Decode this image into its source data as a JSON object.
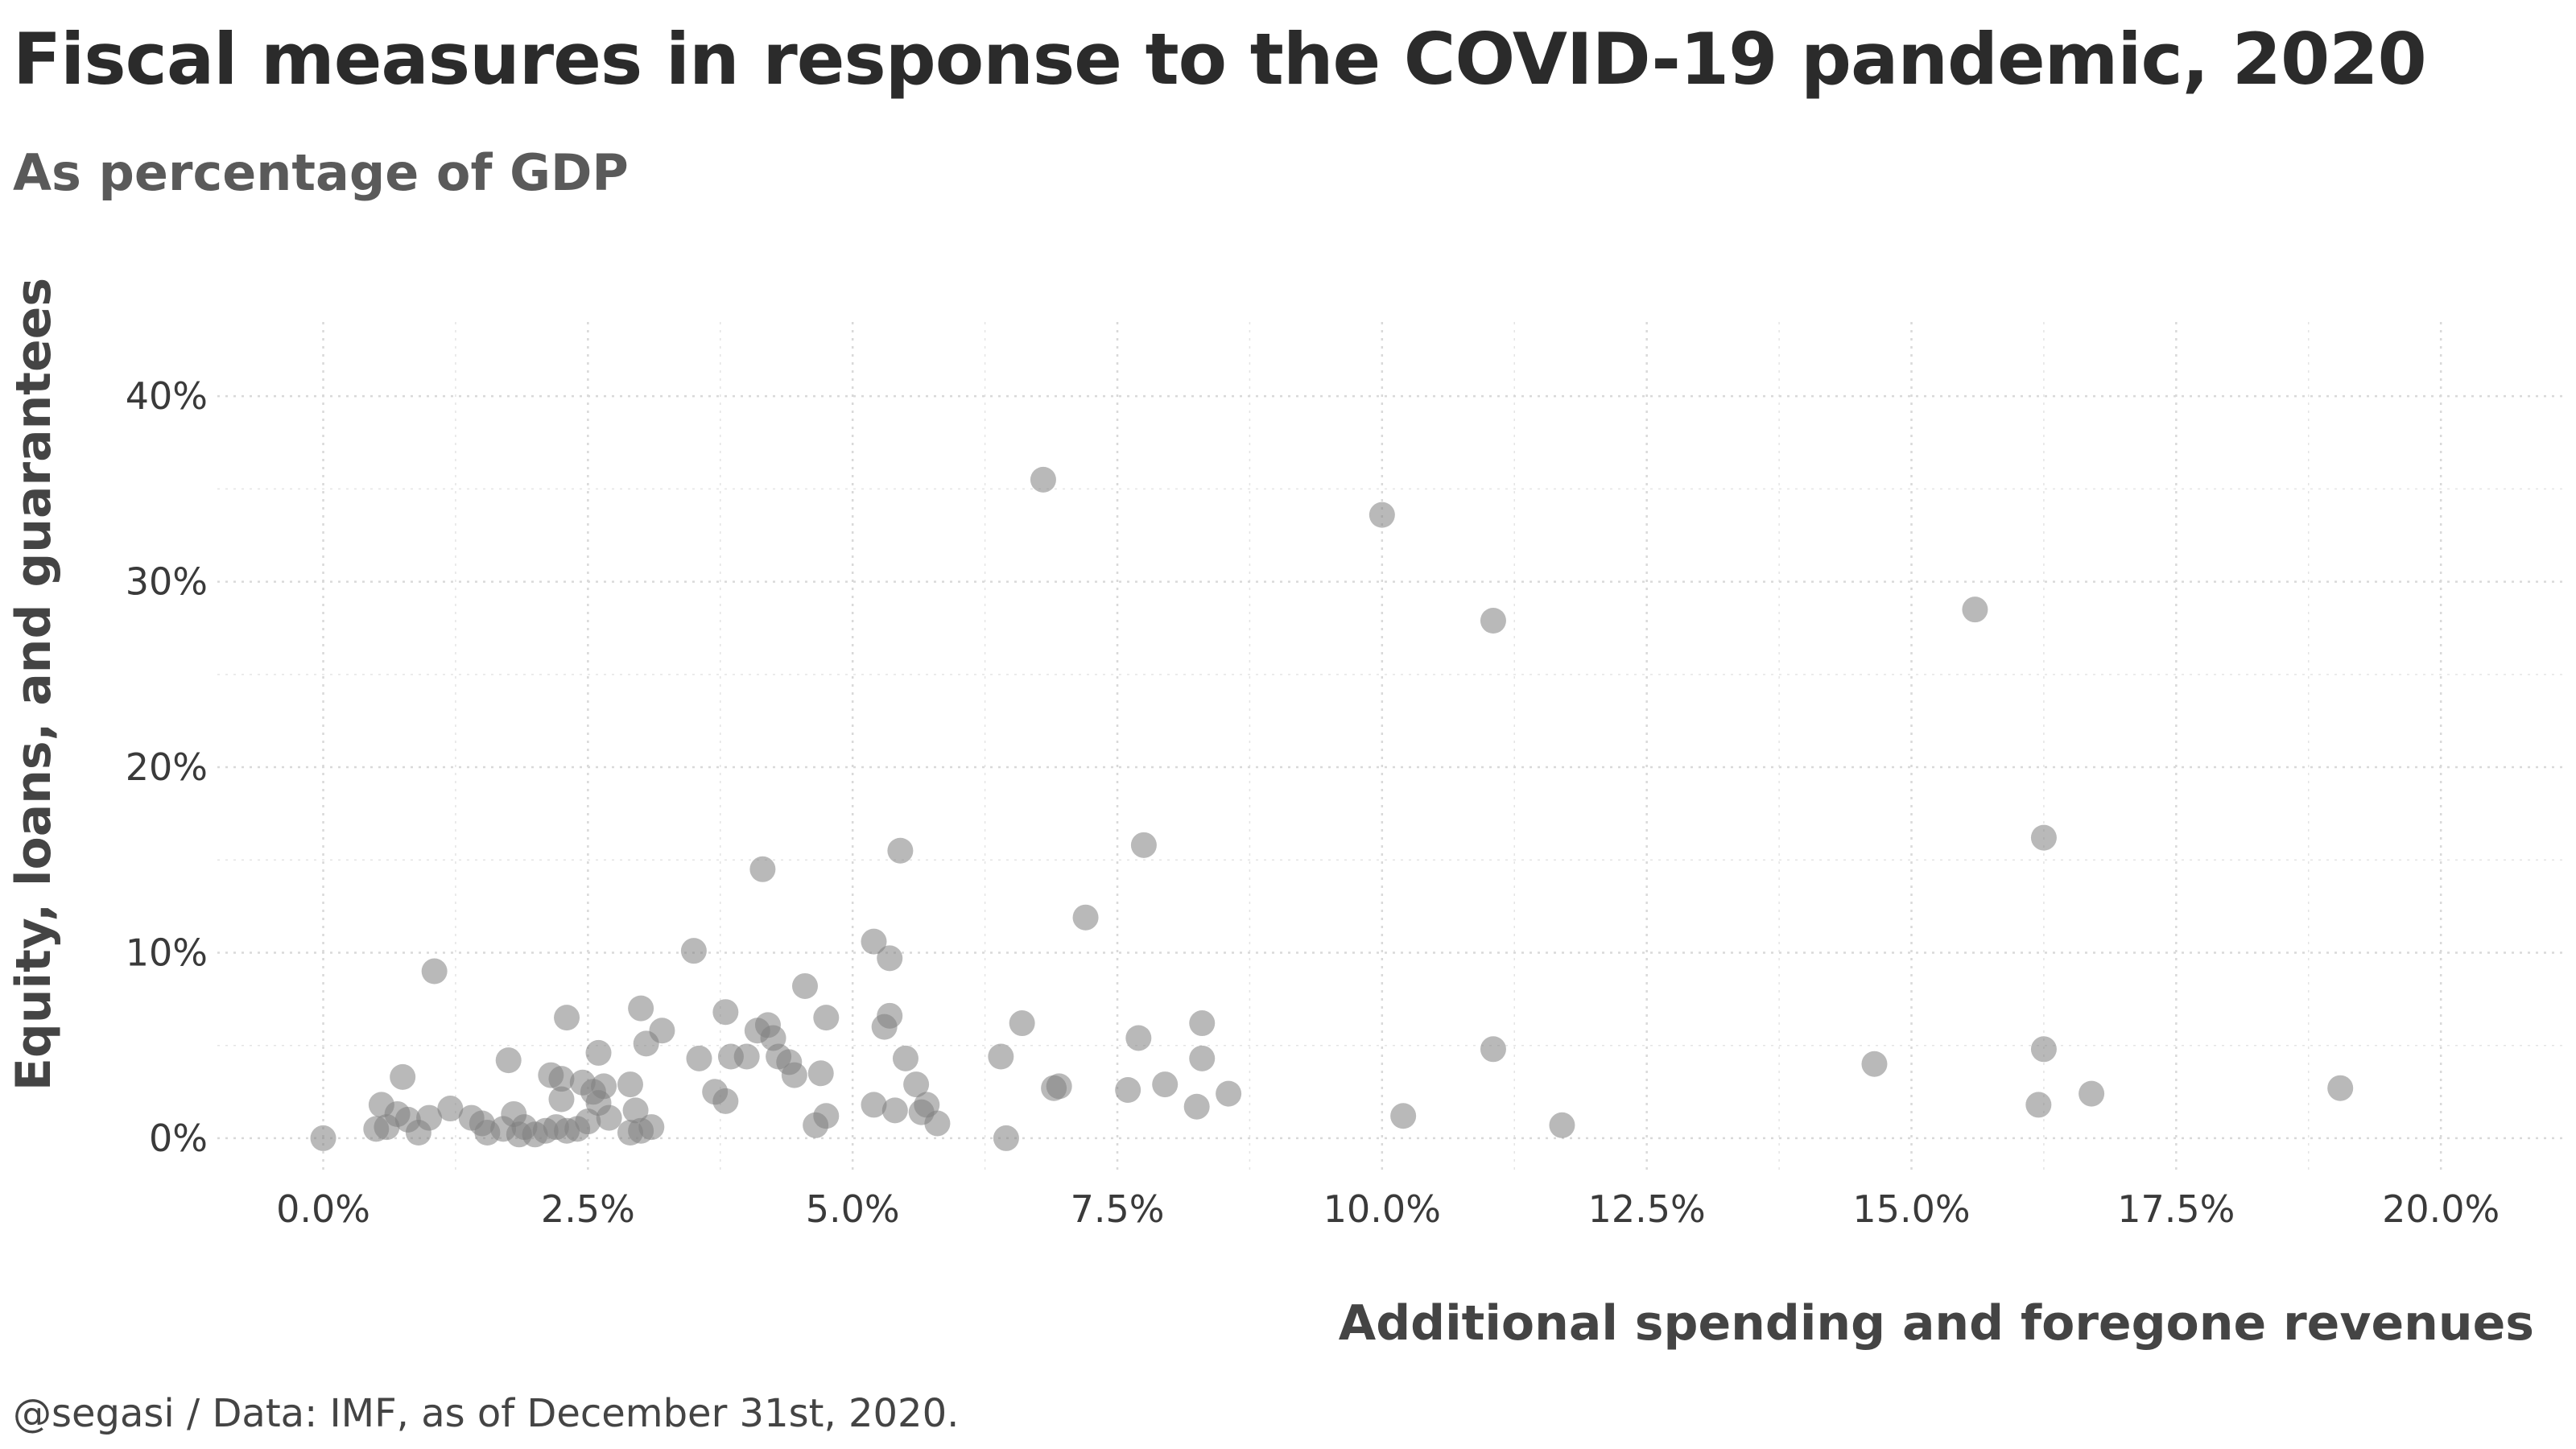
{
  "title": "Fiscal measures in response to the COVID-19 pandemic, 2020",
  "subtitle": "As percentage of GDP",
  "caption": "@segasi / Data: IMF, as of December 31st, 2020.",
  "colors": {
    "point": "#7f7f7f",
    "grid": "#d9d9d9",
    "text": "#333333"
  },
  "chart_data": {
    "type": "scatter",
    "title": "Fiscal measures in response to the COVID-19 pandemic, 2020",
    "subtitle": "As percentage of GDP",
    "xlabel": "Additional spending and foregone revenues",
    "ylabel": "Equity, loans, and guarantees",
    "xlim": [
      -1.0,
      21.2
    ],
    "ylim": [
      -2.0,
      44.0
    ],
    "x_ticks": [
      0,
      2.5,
      5,
      7.5,
      10,
      12.5,
      15,
      17.5,
      20
    ],
    "x_tick_labels": [
      "0.0%",
      "2.5%",
      "5.0%",
      "7.5%",
      "10.0%",
      "12.5%",
      "15.0%",
      "17.5%",
      "20.0%"
    ],
    "y_ticks": [
      0,
      10,
      20,
      30,
      40
    ],
    "y_tick_labels": [
      "0%",
      "10%",
      "20%",
      "30%",
      "40%"
    ],
    "grid": true,
    "legend": "none",
    "points": [
      {
        "x": 0.0,
        "y": 0.0
      },
      {
        "x": 0.5,
        "y": 0.5
      },
      {
        "x": 0.55,
        "y": 1.8
      },
      {
        "x": 0.6,
        "y": 0.6
      },
      {
        "x": 0.7,
        "y": 1.3
      },
      {
        "x": 0.75,
        "y": 3.3
      },
      {
        "x": 0.8,
        "y": 1.0
      },
      {
        "x": 0.9,
        "y": 0.3
      },
      {
        "x": 1.0,
        "y": 1.1
      },
      {
        "x": 1.05,
        "y": 9.0
      },
      {
        "x": 1.2,
        "y": 1.6
      },
      {
        "x": 1.4,
        "y": 1.1
      },
      {
        "x": 1.5,
        "y": 0.8
      },
      {
        "x": 1.55,
        "y": 0.3
      },
      {
        "x": 1.7,
        "y": 0.5
      },
      {
        "x": 1.75,
        "y": 4.2
      },
      {
        "x": 1.8,
        "y": 1.3
      },
      {
        "x": 1.85,
        "y": 0.2
      },
      {
        "x": 1.9,
        "y": 0.6
      },
      {
        "x": 2.0,
        "y": 0.2
      },
      {
        "x": 2.1,
        "y": 0.4
      },
      {
        "x": 2.15,
        "y": 3.4
      },
      {
        "x": 2.2,
        "y": 0.6
      },
      {
        "x": 2.25,
        "y": 2.1
      },
      {
        "x": 2.25,
        "y": 3.2
      },
      {
        "x": 2.3,
        "y": 6.5
      },
      {
        "x": 2.3,
        "y": 0.4
      },
      {
        "x": 2.4,
        "y": 0.5
      },
      {
        "x": 2.45,
        "y": 3.0
      },
      {
        "x": 2.5,
        "y": 0.9
      },
      {
        "x": 2.55,
        "y": 2.5
      },
      {
        "x": 2.6,
        "y": 4.6
      },
      {
        "x": 2.6,
        "y": 1.9
      },
      {
        "x": 2.65,
        "y": 2.8
      },
      {
        "x": 2.7,
        "y": 1.1
      },
      {
        "x": 2.9,
        "y": 2.9
      },
      {
        "x": 2.9,
        "y": 0.3
      },
      {
        "x": 2.95,
        "y": 1.5
      },
      {
        "x": 3.0,
        "y": 0.4
      },
      {
        "x": 3.0,
        "y": 7.0
      },
      {
        "x": 3.05,
        "y": 5.1
      },
      {
        "x": 3.1,
        "y": 0.6
      },
      {
        "x": 3.2,
        "y": 5.8
      },
      {
        "x": 3.5,
        "y": 10.1
      },
      {
        "x": 3.55,
        "y": 4.3
      },
      {
        "x": 3.7,
        "y": 2.5
      },
      {
        "x": 3.8,
        "y": 2.0
      },
      {
        "x": 3.8,
        "y": 6.8
      },
      {
        "x": 3.85,
        "y": 4.4
      },
      {
        "x": 4.0,
        "y": 4.4
      },
      {
        "x": 4.1,
        "y": 5.8
      },
      {
        "x": 4.15,
        "y": 14.5
      },
      {
        "x": 4.2,
        "y": 6.1
      },
      {
        "x": 4.25,
        "y": 5.4
      },
      {
        "x": 4.3,
        "y": 4.4
      },
      {
        "x": 4.4,
        "y": 4.1
      },
      {
        "x": 4.45,
        "y": 3.4
      },
      {
        "x": 4.55,
        "y": 8.2
      },
      {
        "x": 4.65,
        "y": 0.7
      },
      {
        "x": 4.7,
        "y": 3.5
      },
      {
        "x": 4.75,
        "y": 6.5
      },
      {
        "x": 4.75,
        "y": 1.2
      },
      {
        "x": 5.2,
        "y": 10.6
      },
      {
        "x": 5.2,
        "y": 1.8
      },
      {
        "x": 5.3,
        "y": 6.0
      },
      {
        "x": 5.35,
        "y": 6.6
      },
      {
        "x": 5.35,
        "y": 9.7
      },
      {
        "x": 5.4,
        "y": 1.5
      },
      {
        "x": 5.45,
        "y": 15.5
      },
      {
        "x": 5.5,
        "y": 4.3
      },
      {
        "x": 5.6,
        "y": 2.9
      },
      {
        "x": 5.65,
        "y": 1.4
      },
      {
        "x": 5.7,
        "y": 1.8
      },
      {
        "x": 5.8,
        "y": 0.8
      },
      {
        "x": 6.4,
        "y": 4.4
      },
      {
        "x": 6.45,
        "y": 0.0
      },
      {
        "x": 6.6,
        "y": 6.2
      },
      {
        "x": 6.8,
        "y": 35.5
      },
      {
        "x": 6.9,
        "y": 2.7
      },
      {
        "x": 6.95,
        "y": 2.8
      },
      {
        "x": 7.2,
        "y": 11.9
      },
      {
        "x": 7.6,
        "y": 2.6
      },
      {
        "x": 7.7,
        "y": 5.4
      },
      {
        "x": 7.75,
        "y": 15.8
      },
      {
        "x": 7.95,
        "y": 2.9
      },
      {
        "x": 8.25,
        "y": 1.7
      },
      {
        "x": 8.3,
        "y": 6.2
      },
      {
        "x": 8.3,
        "y": 4.3
      },
      {
        "x": 8.55,
        "y": 2.4
      },
      {
        "x": 10.0,
        "y": 33.6
      },
      {
        "x": 10.2,
        "y": 1.2
      },
      {
        "x": 11.05,
        "y": 27.9
      },
      {
        "x": 11.05,
        "y": 4.8
      },
      {
        "x": 11.7,
        "y": 0.7
      },
      {
        "x": 14.65,
        "y": 4.0
      },
      {
        "x": 15.6,
        "y": 28.5
      },
      {
        "x": 16.2,
        "y": 1.8
      },
      {
        "x": 16.25,
        "y": 16.2
      },
      {
        "x": 16.25,
        "y": 4.8
      },
      {
        "x": 16.7,
        "y": 2.4
      },
      {
        "x": 19.05,
        "y": 2.7
      }
    ]
  }
}
